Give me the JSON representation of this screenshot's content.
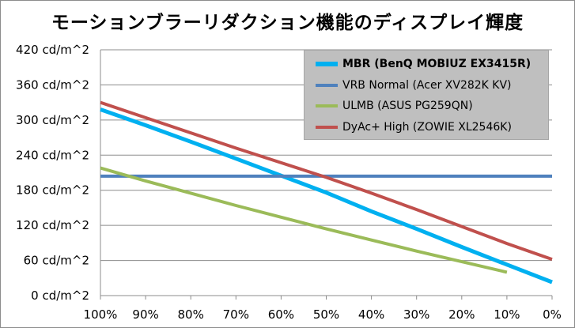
{
  "chart_data": {
    "type": "line",
    "title": "モーションブラーリダクション機能のディスプレイ輝度",
    "x": [
      "100%",
      "90%",
      "80%",
      "70%",
      "60%",
      "50%",
      "40%",
      "30%",
      "20%",
      "10%",
      "0%"
    ],
    "y_ticks": [
      "420 cd/m^2",
      "360 cd/m^2",
      "300 cd/m^2",
      "240 cd/m^2",
      "180 cd/m^2",
      "120 cd/m^2",
      "60 cd/m^2",
      "0 cd/m^2"
    ],
    "ylim": [
      0,
      420
    ],
    "grid": "horizontal",
    "legend_position": "top-right",
    "series": [
      {
        "name": "MBR (BenQ MOBIUZ EX3415R)",
        "color": "#00b0f0",
        "emphasis": true,
        "values": [
          318,
          291,
          263,
          234,
          205,
          176,
          144,
          114,
          83,
          53,
          23
        ]
      },
      {
        "name": "VRB Normal (Acer XV282K KV)",
        "color": "#4f81bd",
        "emphasis": false,
        "values": [
          204,
          204,
          204,
          204,
          204,
          204,
          204,
          204,
          204,
          204,
          204
        ]
      },
      {
        "name": "ULMB (ASUS PG259QN)",
        "color": "#9bbb59",
        "emphasis": false,
        "values": [
          218,
          196,
          175,
          154,
          134,
          114,
          95,
          76,
          58,
          40,
          null
        ]
      },
      {
        "name": "DyAc+ High (ZOWIE XL2546K)",
        "color": "#c0504d",
        "emphasis": false,
        "values": [
          330,
          304,
          278,
          252,
          227,
          202,
          175,
          147,
          118,
          89,
          62
        ]
      }
    ]
  }
}
